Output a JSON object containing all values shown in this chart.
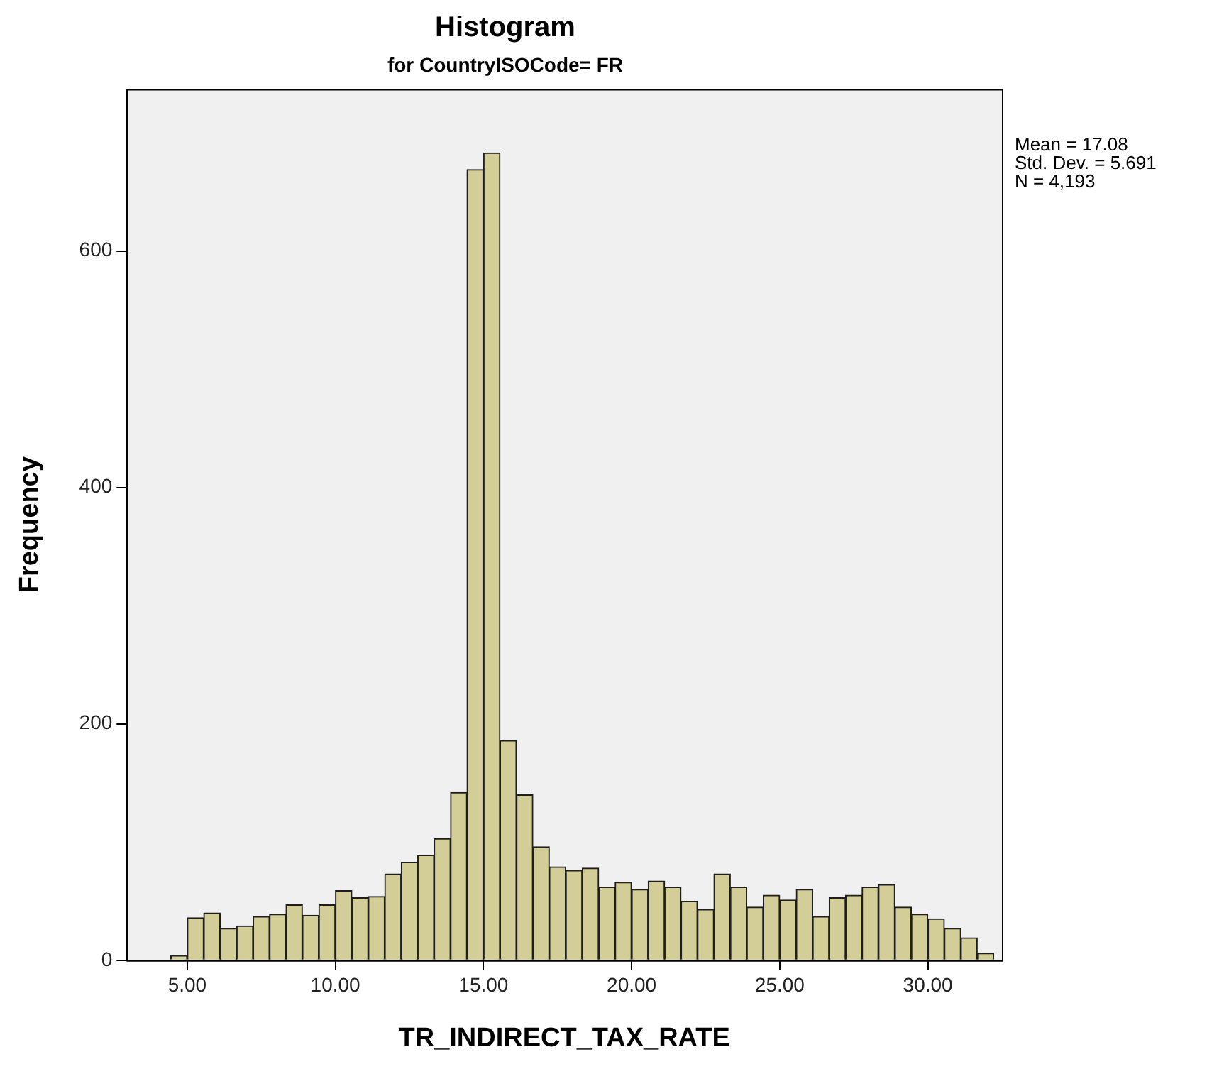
{
  "chart_data": {
    "type": "histogram",
    "title": "Histogram",
    "subtitle": "for CountryISOCode= FR",
    "xlabel": "TR_INDIRECT_TAX_RATE",
    "ylabel": "Frequency",
    "bins": [
      4.44,
      5,
      5.56,
      6.11,
      6.67,
      7.22,
      7.78,
      8.33,
      8.89,
      9.44,
      10,
      10.56,
      11.11,
      11.67,
      12.22,
      12.78,
      13.33,
      13.89,
      14.44,
      15,
      15.56,
      16.11,
      16.67,
      17.22,
      17.78,
      18.33,
      18.89,
      19.44,
      20,
      20.56,
      21.11,
      21.67,
      22.22,
      22.78,
      23.33,
      23.89,
      24.44,
      25,
      25.56,
      26.11,
      26.67,
      27.22,
      27.78,
      28.33,
      28.89,
      29.44,
      30,
      30.56,
      31.11,
      31.67,
      32.22
    ],
    "values": [
      4,
      36,
      40,
      27,
      29,
      37,
      39,
      47,
      38,
      47,
      59,
      53,
      54,
      73,
      83,
      89,
      103,
      142,
      669,
      683,
      186,
      140,
      96,
      79,
      76,
      78,
      62,
      66,
      60,
      67,
      62,
      50,
      43,
      73,
      62,
      45,
      55,
      51,
      60,
      37,
      53,
      55,
      62,
      64,
      45,
      39,
      35,
      27,
      19,
      6
    ],
    "color": "#d3ce97",
    "xlim": [
      2.95,
      32.5
    ],
    "xticks": [
      {
        "value": 5,
        "label": "5.00"
      },
      {
        "value": 10,
        "label": "10.00"
      },
      {
        "value": 15,
        "label": "15.00"
      },
      {
        "value": 20,
        "label": "20.00"
      },
      {
        "value": 25,
        "label": "25.00"
      },
      {
        "value": 30,
        "label": "30.00"
      }
    ],
    "ylim": [
      0,
      737
    ],
    "yticks": [
      0,
      200,
      400,
      600
    ],
    "annotations": [
      "Mean = 17.08",
      "Std. Dev. = 5.691",
      "N = 4,193"
    ]
  }
}
